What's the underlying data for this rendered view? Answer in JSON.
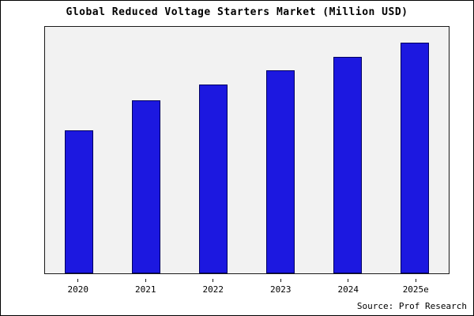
{
  "chart_data": {
    "type": "bar",
    "title": "Global Reduced Voltage Starters Market (Million USD)",
    "categories": [
      "2020",
      "2021",
      "2022",
      "2023",
      "2024",
      "2025e"
    ],
    "values": [
      62,
      75,
      82,
      88,
      94,
      100
    ],
    "xlabel": "",
    "ylabel": "",
    "ylim": [
      0,
      107
    ],
    "grid": false,
    "legend": "none",
    "bar_color": "#1c18e0",
    "bar_border_color": "#000060",
    "plot_background": "#f2f2f2",
    "source": "Source: Prof Research"
  }
}
